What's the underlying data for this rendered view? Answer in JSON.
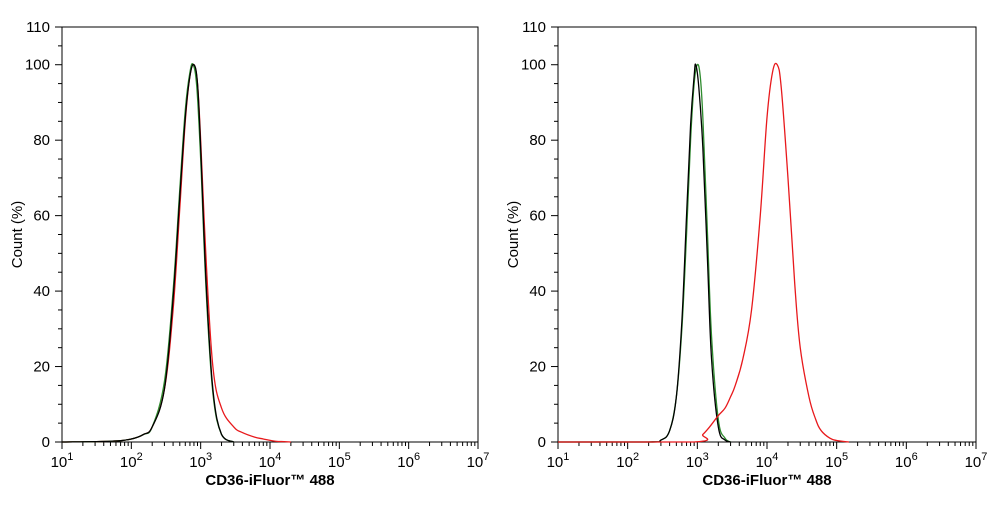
{
  "chart_data": [
    {
      "type": "line",
      "xscale": "log",
      "xlim": [
        10,
        10000000
      ],
      "ylim": [
        0,
        110
      ],
      "x_tick_labels": [
        "10",
        "10",
        "10",
        "10",
        "10",
        "10",
        "10"
      ],
      "x_tick_exponents": [
        "1",
        "2",
        "3",
        "4",
        "5",
        "6",
        "7"
      ],
      "y_tick_labels": [
        "0",
        "20",
        "40",
        "60",
        "80",
        "100",
        "110"
      ],
      "y_tick_values": [
        0,
        20,
        40,
        60,
        80,
        100,
        110
      ],
      "ylabel": "Count  (%)",
      "xlabel": "CD36-iFluor™ 488",
      "grid": false,
      "legend": "none",
      "series": [
        {
          "color": "#e8191c",
          "x": [
            10,
            50,
            100,
            150,
            200,
            300,
            400,
            500,
            600,
            700,
            800,
            900,
            1000,
            1200,
            1500,
            2000,
            3000,
            4000,
            6000,
            8000,
            12000,
            16000,
            20000
          ],
          "y": [
            0,
            0.2,
            0.8,
            2,
            4,
            14,
            35,
            62,
            85,
            97,
            100,
            95,
            80,
            48,
            20,
            9,
            4,
            2.5,
            1.3,
            0.8,
            0.2,
            0.1,
            0
          ]
        },
        {
          "color": "#2e8b2e",
          "x": [
            10,
            50,
            100,
            150,
            200,
            300,
            400,
            500,
            600,
            700,
            780,
            880,
            1000,
            1200,
            1500,
            2000,
            3000
          ],
          "y": [
            0,
            0.2,
            0.8,
            2,
            4,
            16,
            40,
            67,
            88,
            98,
            100,
            94,
            75,
            40,
            13,
            2,
            0
          ]
        },
        {
          "color": "#000000",
          "x": [
            10,
            50,
            100,
            150,
            200,
            300,
            400,
            500,
            600,
            700,
            800,
            900,
            1000,
            1200,
            1500,
            2000,
            3000
          ],
          "y": [
            0,
            0.2,
            0.8,
            2,
            4,
            14,
            38,
            65,
            86,
            97,
            100,
            95,
            78,
            42,
            14,
            2,
            0
          ]
        }
      ]
    },
    {
      "type": "line",
      "xscale": "log",
      "xlim": [
        10,
        10000000
      ],
      "ylim": [
        0,
        110
      ],
      "x_tick_labels": [
        "10",
        "10",
        "10",
        "10",
        "10",
        "10",
        "10"
      ],
      "x_tick_exponents": [
        "1",
        "2",
        "3",
        "4",
        "5",
        "6",
        "7"
      ],
      "y_tick_labels": [
        "0",
        "20",
        "40",
        "60",
        "80",
        "100",
        "110"
      ],
      "y_tick_values": [
        0,
        20,
        40,
        60,
        80,
        100,
        110
      ],
      "ylabel": "Count  (%)",
      "xlabel": "CD36-iFluor™ 488",
      "grid": false,
      "legend": "none",
      "series": [
        {
          "color": "#2e8b2e",
          "x": [
            10,
            200,
            300,
            400,
            500,
            600,
            700,
            800,
            900,
            1000,
            1100,
            1200,
            1400,
            1600,
            2000,
            2500,
            3000
          ],
          "y": [
            0,
            0,
            0.5,
            3,
            12,
            30,
            55,
            80,
            95,
            100,
            97,
            86,
            55,
            28,
            6,
            1,
            0
          ]
        },
        {
          "color": "#000000",
          "x": [
            10,
            200,
            300,
            400,
            500,
            600,
            700,
            800,
            900,
            950,
            1050,
            1200,
            1400,
            1600,
            2000,
            2500,
            3000
          ],
          "y": [
            0,
            0,
            0.5,
            3,
            12,
            32,
            60,
            84,
            97,
            100,
            94,
            78,
            48,
            22,
            4,
            0.5,
            0
          ]
        },
        {
          "color": "#e8191c",
          "x": [
            10,
            900,
            1200,
            1500,
            2000,
            2500,
            3000,
            3500,
            4500,
            6000,
            8000,
            10000,
            12000,
            14000,
            16000,
            20000,
            25000,
            30000,
            40000,
            50000,
            60000,
            80000,
            100000,
            150000
          ],
          "y": [
            0,
            0,
            2,
            4,
            7,
            9,
            12,
            15,
            22,
            35,
            60,
            86,
            98,
            100,
            94,
            70,
            42,
            25,
            12,
            6,
            3,
            1,
            0.4,
            0
          ]
        }
      ]
    }
  ]
}
